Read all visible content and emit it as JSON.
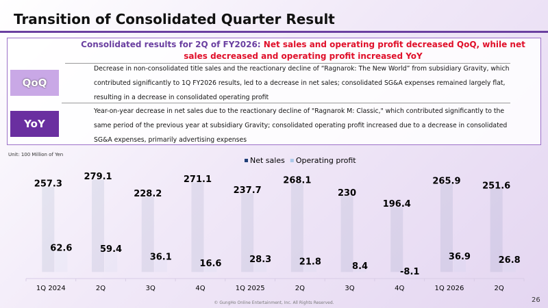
{
  "header": {
    "title": "Transition of Consolidated Quarter Result"
  },
  "summary": {
    "label": "Consolidated results for 2Q of FY2026:",
    "text": "Net sales and operating profit decreased QoQ, while net sales decreased and operating profit increased YoY"
  },
  "qoq": {
    "label": "QoQ",
    "text": "Decrease in non-consolidated title sales and the reactionary decline of “Ragnarok: The New World” from subsidiary Gravity, which contributed significantly to 1Q FY2026 results, led to a decrease in net sales; consolidated SG&A expenses remained largely flat, resulting in a decrease in consolidated operating profit"
  },
  "yoy": {
    "label": "YoY",
    "text": "Year-on-year decrease in net sales due to the reactionary decline of \"Ragnarok M: Classic,\" which contributed significantly to the same period of the previous year at subsidiary Gravity; consolidated operating profit increased due to a decrease in consolidated SG&A expenses, primarily advertising expenses"
  },
  "chart_data": {
    "type": "bar",
    "unit_note": "Unit: 100 Million of Yen",
    "categories": [
      "1Q 2024",
      "2Q",
      "3Q",
      "4Q",
      "1Q 2025",
      "2Q",
      "3Q",
      "4Q",
      "1Q 2026",
      "2Q"
    ],
    "series": [
      {
        "name": "Net sales",
        "color": "#1f3f77",
        "values": [
          257.3,
          279.1,
          228.2,
          271.1,
          237.7,
          268.1,
          230,
          196.4,
          265.9,
          251.6
        ]
      },
      {
        "name": "Operating profit",
        "color": "#a9c7e8",
        "values": [
          62.6,
          59.4,
          36.1,
          16.6,
          28.3,
          21.8,
          8.4,
          -8.1,
          36.9,
          26.8
        ]
      }
    ],
    "ylim": [
      -20,
      320
    ],
    "legend": "top"
  },
  "footer": {
    "copyright": "© GungHo Online Entertainment, Inc. All Rights Reserved.",
    "page": "26"
  }
}
